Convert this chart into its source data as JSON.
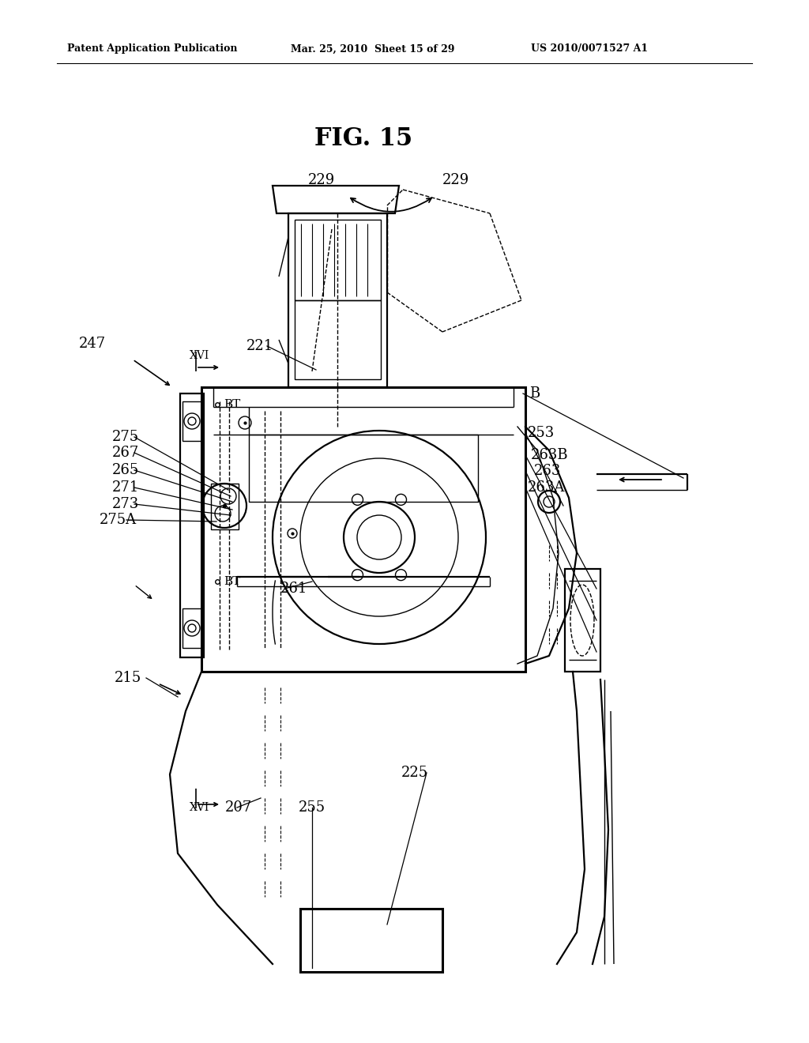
{
  "bg_color": "#ffffff",
  "header_left": "Patent Application Publication",
  "header_mid": "Mar. 25, 2010  Sheet 15 of 29",
  "header_right": "US 2010/0071527 A1",
  "fig_title": "FIG. 15"
}
